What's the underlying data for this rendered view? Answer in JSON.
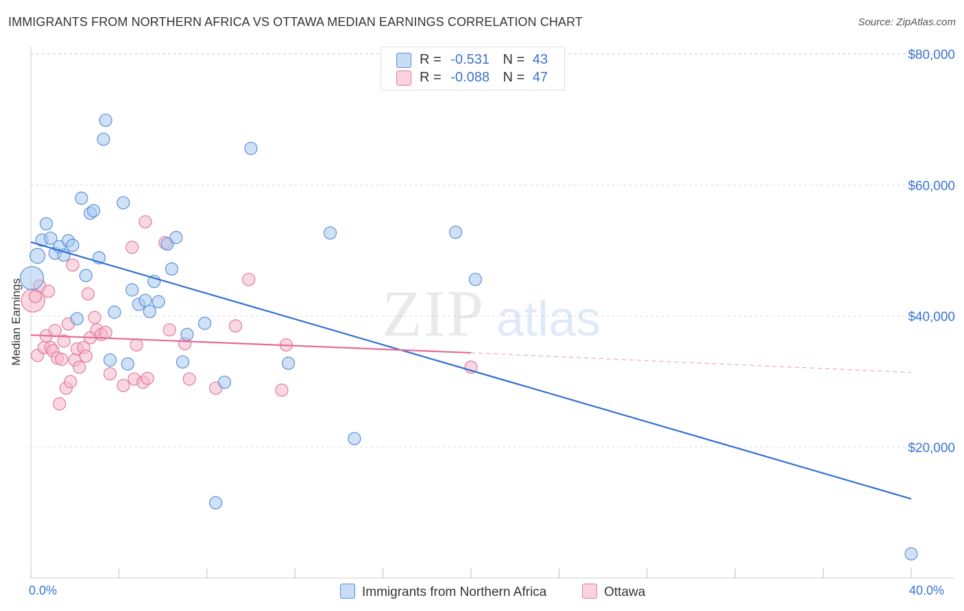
{
  "header": {
    "title": "IMMIGRANTS FROM NORTHERN AFRICA VS OTTAWA MEDIAN EARNINGS CORRELATION CHART",
    "source": "Source: ZipAtlas.com"
  },
  "watermark": {
    "zip": "ZIP",
    "atlas": "atlas"
  },
  "legend_top": {
    "rows": [
      {
        "r_label": "R =",
        "r_value": "-0.531",
        "n_label": "N =",
        "n_value": "43",
        "color": "#a8c8f0"
      },
      {
        "r_label": "R =",
        "r_value": "-0.088",
        "n_label": "N =",
        "n_value": "47",
        "color": "#f6b8cb"
      }
    ]
  },
  "legend_bottom": {
    "series1": "Immigrants from Northern Africa",
    "series2": "Ottawa"
  },
  "x_axis": {
    "min_label": "0.0%",
    "max_label": "40.0%"
  },
  "chart_data": {
    "type": "scatter",
    "title": "IMMIGRANTS FROM NORTHERN AFRICA VS OTTAWA MEDIAN EARNINGS CORRELATION CHART",
    "ylabel": "Median Earnings",
    "xlabel": "",
    "xlim": [
      0,
      40
    ],
    "ylim": [
      0,
      82000
    ],
    "y_ticks": [
      20000,
      40000,
      60000,
      80000
    ],
    "y_tick_labels": [
      "$20,000",
      "$40,000",
      "$60,000",
      "$80,000"
    ],
    "x_tick_labels": [
      "0.0%",
      "40.0%"
    ],
    "grid": true,
    "series": [
      {
        "name": "Immigrants from Northern Africa",
        "color": "#a8c8f0",
        "stroke": "#5b8fd8",
        "line_color": "#2f6fd0",
        "trend": {
          "x": [
            0,
            40
          ],
          "y": [
            51300,
            12100
          ]
        },
        "points": [
          [
            0.05,
            45800
          ],
          [
            0.3,
            49200
          ],
          [
            0.5,
            51600
          ],
          [
            0.7,
            54100
          ],
          [
            0.9,
            51900
          ],
          [
            1.1,
            49600
          ],
          [
            1.3,
            50600
          ],
          [
            1.5,
            49300
          ],
          [
            1.7,
            51500
          ],
          [
            1.9,
            50800
          ],
          [
            2.1,
            39600
          ],
          [
            2.3,
            58000
          ],
          [
            2.5,
            46200
          ],
          [
            2.7,
            55700
          ],
          [
            2.85,
            56100
          ],
          [
            3.1,
            48900
          ],
          [
            3.3,
            67000
          ],
          [
            3.4,
            69900
          ],
          [
            3.6,
            33300
          ],
          [
            3.8,
            40600
          ],
          [
            4.2,
            57300
          ],
          [
            4.4,
            32700
          ],
          [
            4.6,
            44000
          ],
          [
            4.9,
            41800
          ],
          [
            5.2,
            42400
          ],
          [
            5.4,
            40700
          ],
          [
            5.6,
            45300
          ],
          [
            5.8,
            42200
          ],
          [
            6.2,
            51000
          ],
          [
            6.4,
            47200
          ],
          [
            6.6,
            52000
          ],
          [
            6.9,
            33000
          ],
          [
            7.1,
            37200
          ],
          [
            7.9,
            38900
          ],
          [
            8.4,
            11500
          ],
          [
            8.8,
            29900
          ],
          [
            10.0,
            65600
          ],
          [
            11.7,
            32800
          ],
          [
            13.6,
            52700
          ],
          [
            14.7,
            21300
          ],
          [
            19.3,
            52800
          ],
          [
            20.2,
            45600
          ],
          [
            40.0,
            3700
          ]
        ]
      },
      {
        "name": "Ottawa",
        "color": "#f6b8cb",
        "stroke": "#e07a9c",
        "line_color": "#e66a94",
        "trend": {
          "x": [
            0,
            20
          ],
          "y": [
            37100,
            34400
          ]
        },
        "trend_dashed": {
          "x": [
            20,
            40
          ],
          "y": [
            34400,
            31400
          ]
        },
        "points": [
          [
            0.1,
            42400
          ],
          [
            0.2,
            43000
          ],
          [
            0.3,
            34000
          ],
          [
            0.4,
            44600
          ],
          [
            0.6,
            35200
          ],
          [
            0.7,
            37000
          ],
          [
            0.8,
            43800
          ],
          [
            0.9,
            35200
          ],
          [
            1.0,
            34700
          ],
          [
            1.1,
            37800
          ],
          [
            1.2,
            33600
          ],
          [
            1.3,
            26600
          ],
          [
            1.4,
            33400
          ],
          [
            1.5,
            36200
          ],
          [
            1.6,
            29000
          ],
          [
            1.7,
            38800
          ],
          [
            1.8,
            30000
          ],
          [
            1.9,
            47800
          ],
          [
            2.0,
            33300
          ],
          [
            2.1,
            35000
          ],
          [
            2.2,
            32200
          ],
          [
            2.4,
            35200
          ],
          [
            2.5,
            33900
          ],
          [
            2.6,
            43400
          ],
          [
            2.7,
            36700
          ],
          [
            2.9,
            39800
          ],
          [
            3.0,
            37900
          ],
          [
            3.2,
            37200
          ],
          [
            3.4,
            37500
          ],
          [
            3.6,
            31200
          ],
          [
            4.2,
            29400
          ],
          [
            4.6,
            50500
          ],
          [
            4.7,
            30400
          ],
          [
            4.8,
            35600
          ],
          [
            5.1,
            29900
          ],
          [
            5.2,
            54400
          ],
          [
            5.3,
            30500
          ],
          [
            6.1,
            51200
          ],
          [
            6.3,
            37900
          ],
          [
            7.0,
            35800
          ],
          [
            7.2,
            30400
          ],
          [
            8.4,
            29000
          ],
          [
            9.3,
            38500
          ],
          [
            9.9,
            45600
          ],
          [
            11.4,
            28700
          ],
          [
            11.6,
            35600
          ],
          [
            20.0,
            32200
          ]
        ]
      }
    ]
  }
}
